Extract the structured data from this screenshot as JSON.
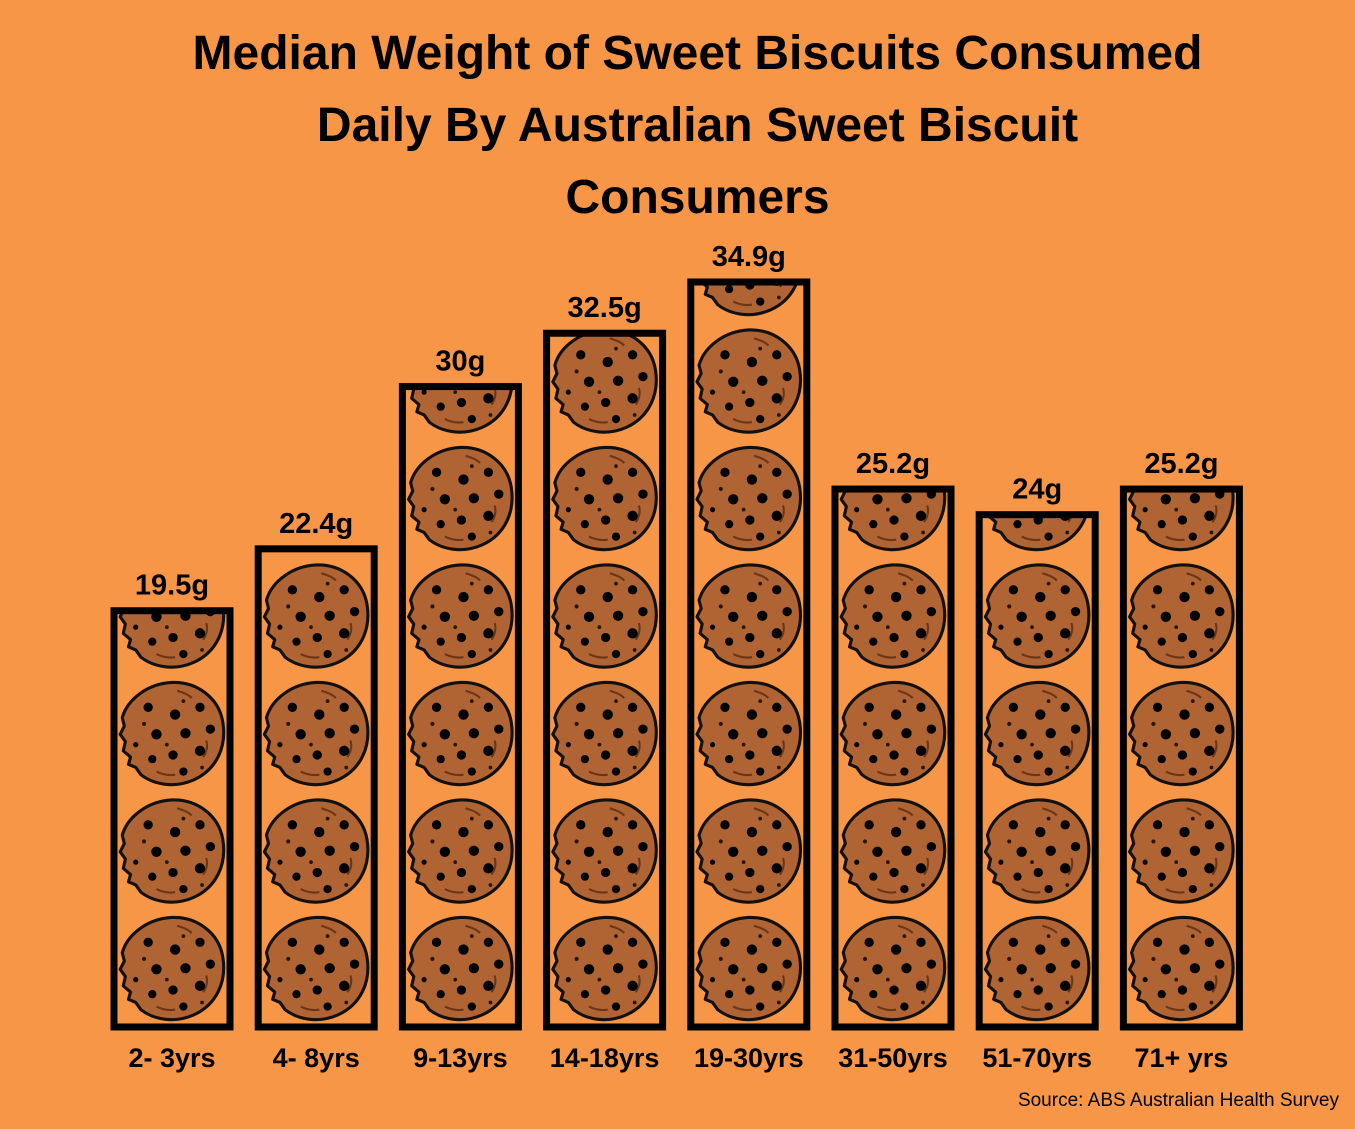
{
  "chart_data": {
    "type": "bar",
    "title_lines": [
      "Median Weight of Sweet Biscuits Consumed",
      "Daily By Australian Sweet Biscuit",
      "Consumers"
    ],
    "categories": [
      "2- 3yrs",
      "4- 8yrs",
      "9-13yrs",
      "14-18yrs",
      "19-30yrs",
      "31-50yrs",
      "51-70yrs",
      "71+ yrs"
    ],
    "values": [
      19.5,
      22.4,
      30,
      32.5,
      34.9,
      25.2,
      24,
      25.2
    ],
    "value_labels": [
      "19.5g",
      "22.4g",
      "30g",
      "32.5g",
      "34.9g",
      "25.2g",
      "24g",
      "25.2g"
    ],
    "unit": "g",
    "xlabel": "",
    "ylabel": "",
    "grid": false,
    "legend": "none",
    "bar_fill": "cookie-pictogram"
  },
  "colors": {
    "background": "#F79646",
    "bar_outline": "#000000",
    "cookie": "#B06434",
    "chip": "#000000"
  },
  "source": "Source: ABS Australian Health Survey"
}
